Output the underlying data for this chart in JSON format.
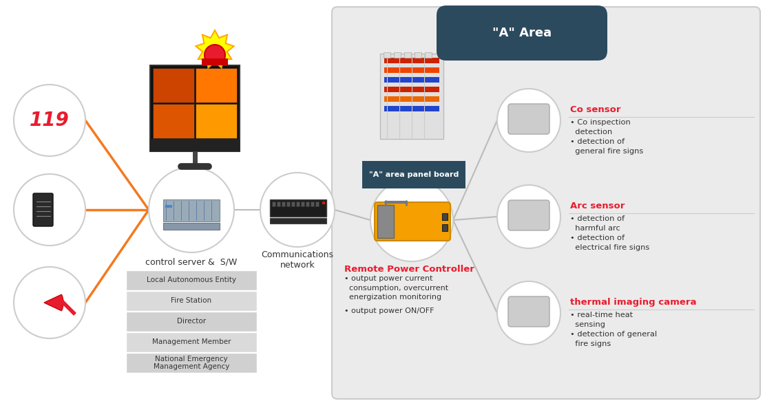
{
  "bg_white": "#ffffff",
  "bg_right": "#ebebeb",
  "orange": "#f47920",
  "dark_navy": "#2c4a5e",
  "red": "#e81c2e",
  "gray_box": "#d0d0d0",
  "gray_line": "#bbbbbb",
  "text_dark": "#333333",
  "area_label": "\"A\" Area",
  "panel_board_label": "\"A\" area panel board",
  "server_label": "control server &  S/W",
  "network_label": "Communications\nnetwork",
  "rpc_title": "Remote Power Controller",
  "rpc_bullet1": "• output power current\n  consumption, overcurrent\n  energization monitoring",
  "rpc_bullet2": "• output power ON/OFF",
  "co_title": "Co sensor",
  "co_bullets": "• Co inspection\n  detection\n• detection of\n  general fire signs",
  "arc_title": "Arc sensor",
  "arc_bullets": "• detection of\n  harmful arc\n• detection of\n  electrical fire signs",
  "thermal_title": "thermal imaging camera",
  "thermal_bullets": "• real-time heat\n  sensing\n• detection of general\n  fire signs",
  "table_rows": [
    "Local Autonomous Entity",
    "Fire Station",
    "Director",
    "Management Member",
    "National Emergency\nManagement Agency"
  ],
  "figsize": [
    11.11,
    5.83
  ],
  "dpi": 100
}
